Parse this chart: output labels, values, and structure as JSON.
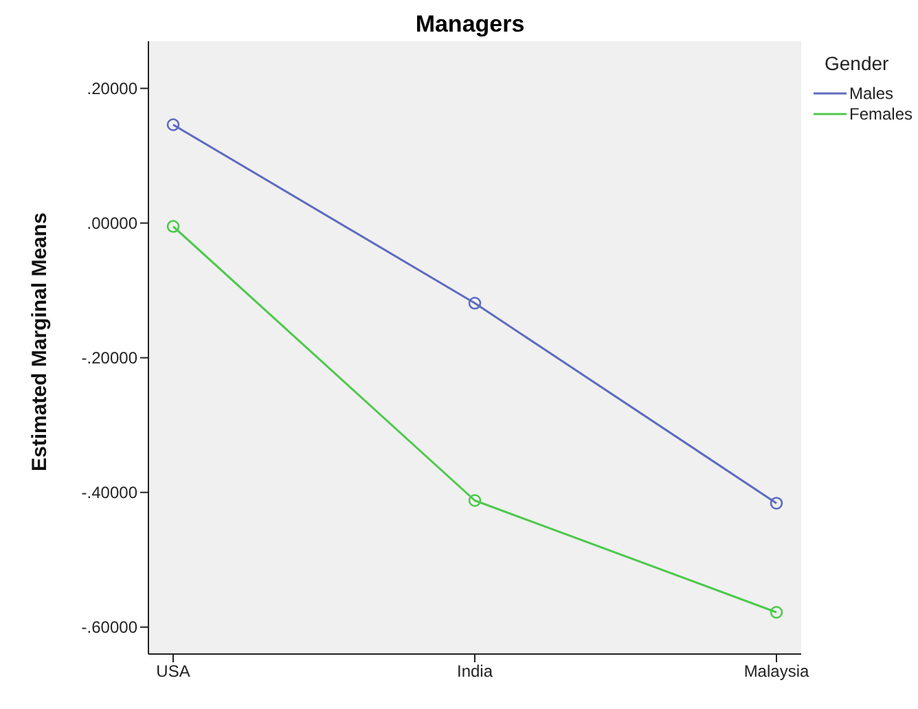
{
  "chart_data": {
    "type": "line",
    "title": "Managers",
    "ylabel": "Estimated Marginal Means",
    "legend_title": "Gender",
    "categories": [
      "USA",
      "India",
      "Malaysia"
    ],
    "series": [
      {
        "name": "Males",
        "color": "#5c6bc0",
        "values": [
          0.146,
          -0.119,
          -0.416
        ]
      },
      {
        "name": "Females",
        "color": "#4cc94c",
        "values": [
          -0.005,
          -0.412,
          -0.578
        ]
      }
    ],
    "ylim": [
      -0.64,
      0.27
    ],
    "yticks": [
      {
        "value": -0.6,
        "label": "-.60000"
      },
      {
        "value": -0.4,
        "label": "-.40000"
      },
      {
        "value": -0.2,
        "label": "-.20000"
      },
      {
        "value": 0,
        "label": ".00000"
      },
      {
        "value": 0.2,
        "label": ".20000"
      }
    ],
    "grid": false,
    "legend": "top right",
    "marker": "circle",
    "line_style": "solid"
  }
}
